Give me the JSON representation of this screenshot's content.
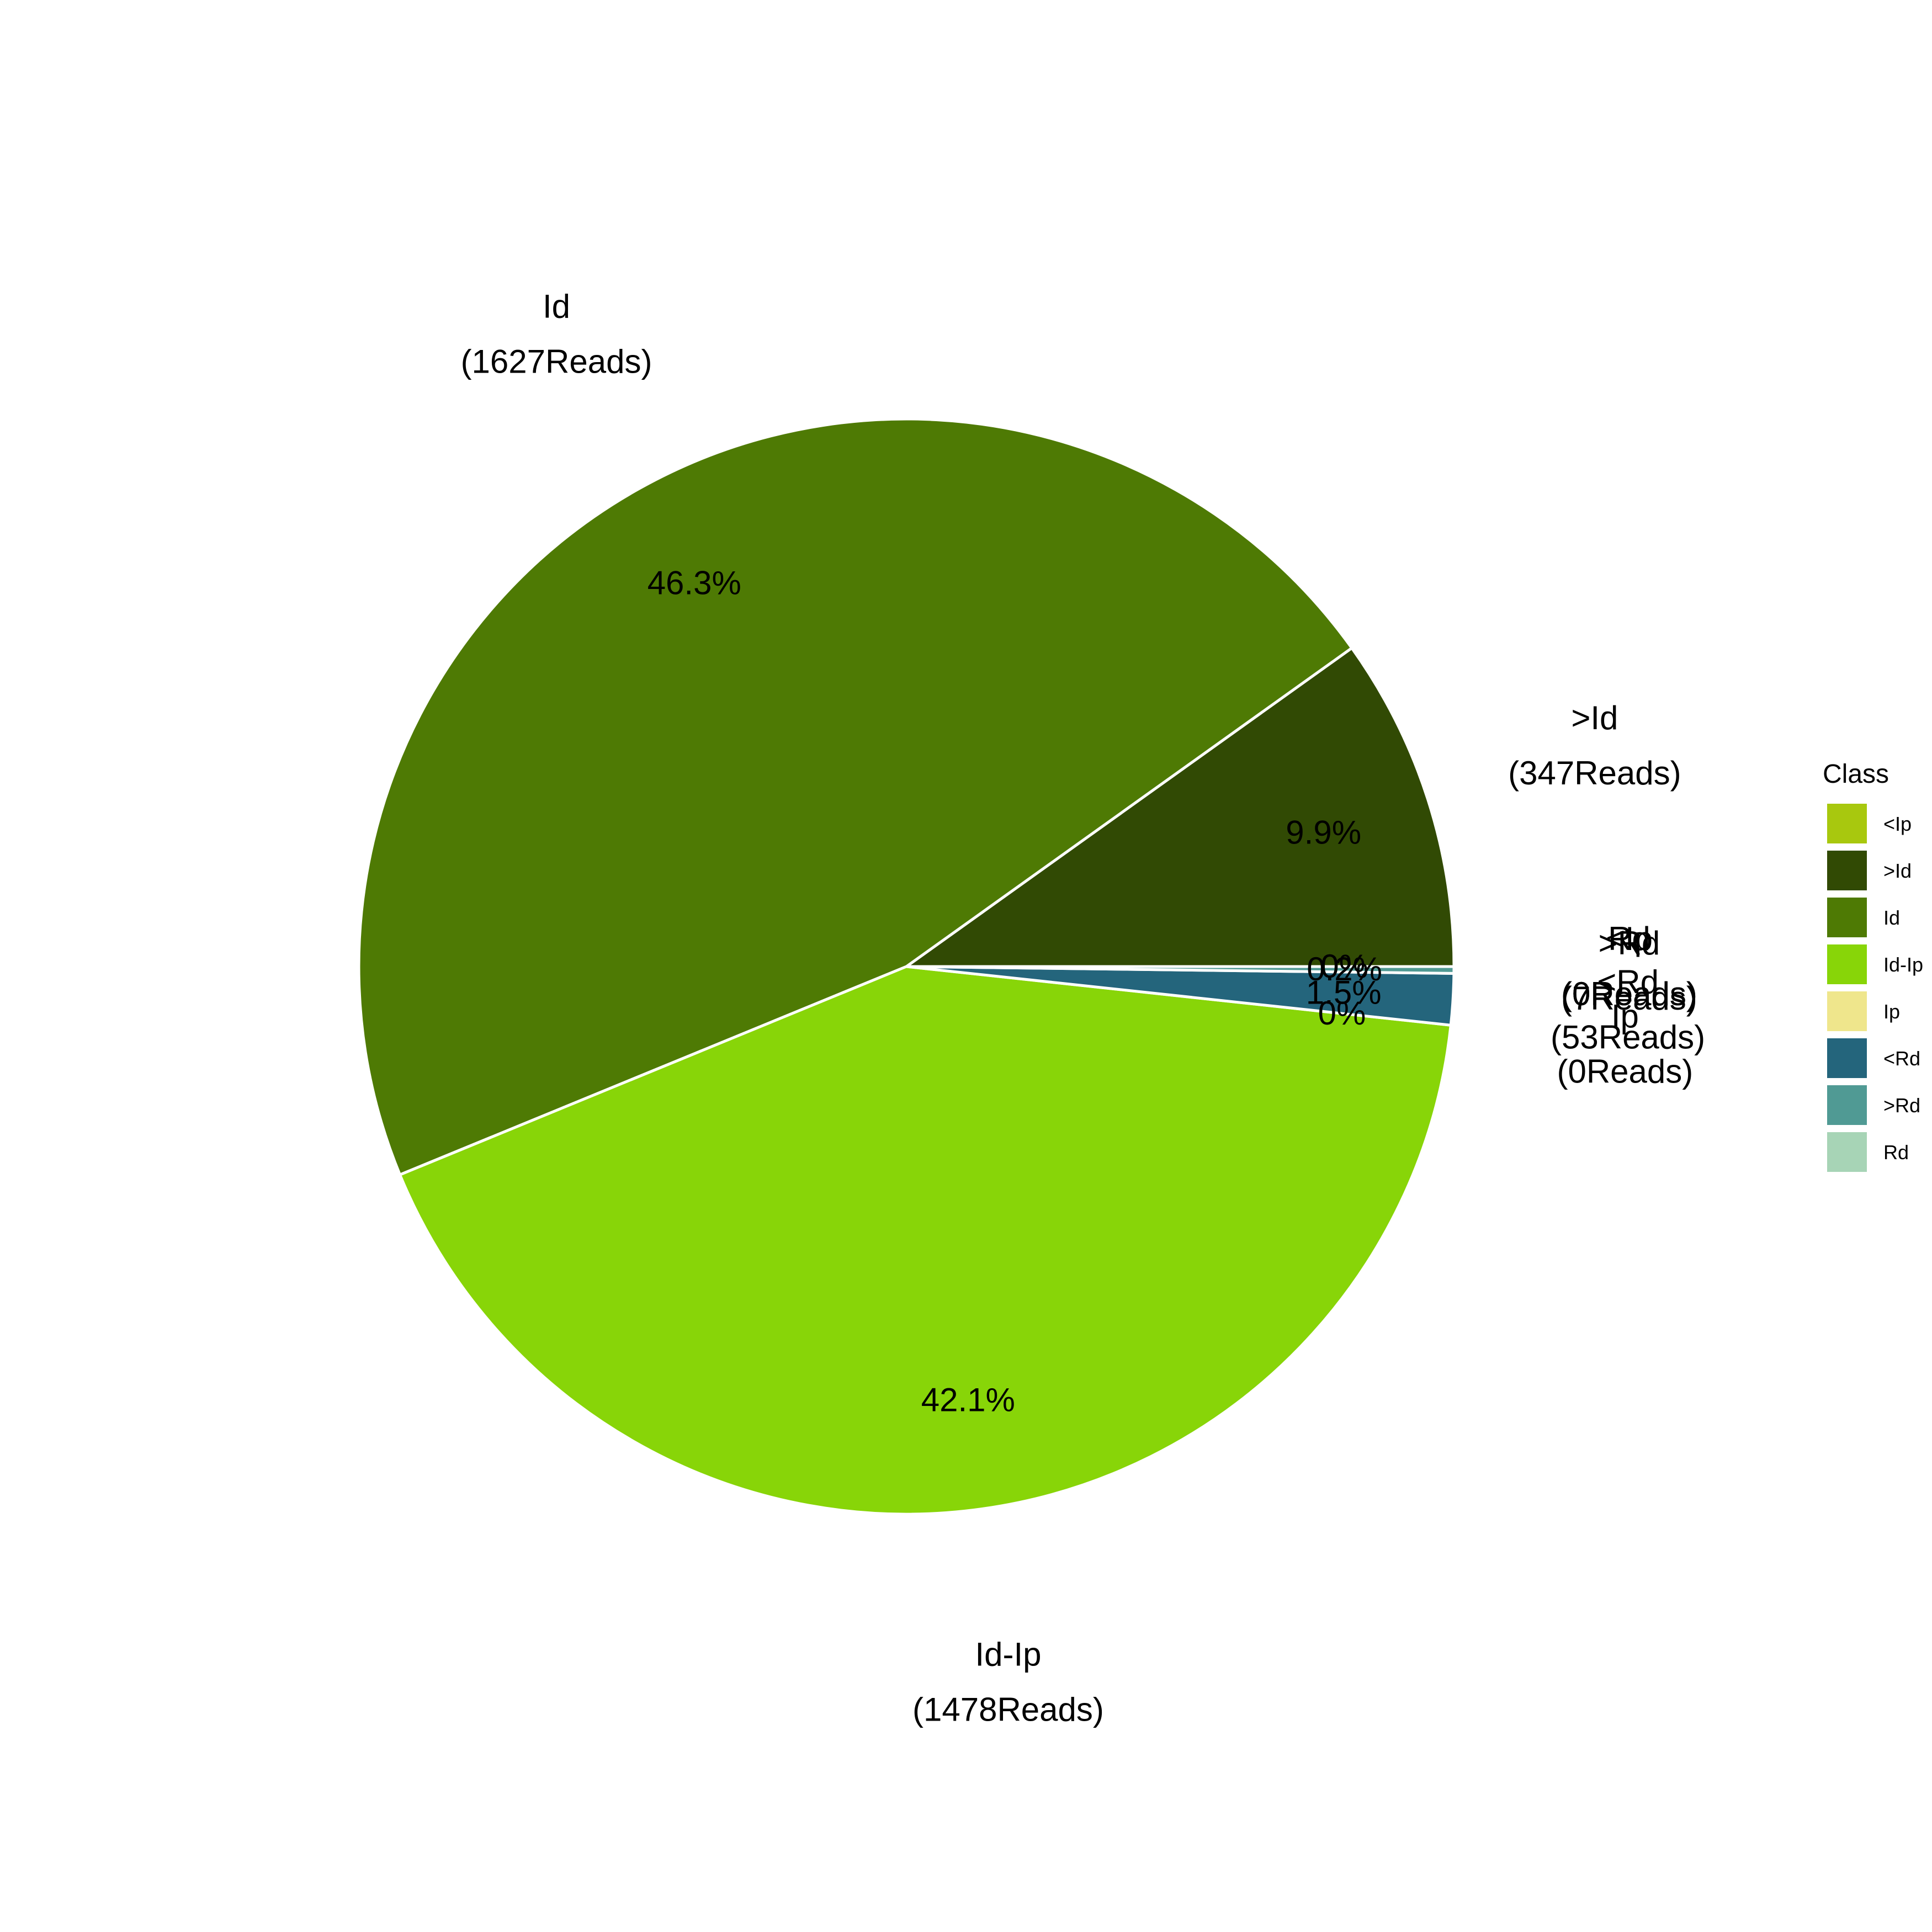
{
  "chart_data": {
    "type": "pie",
    "title": "",
    "slices": [
      {
        "name": "<Ip",
        "value": 0,
        "percent_label": "0%",
        "reads_label": "(0Reads)",
        "color": "#A8C80E"
      },
      {
        "name": ">Id",
        "value": 347,
        "percent_label": "9.9%",
        "reads_label": "(347Reads)",
        "color": "#314A04"
      },
      {
        "name": "Id",
        "value": 1627,
        "percent_label": "46.3%",
        "reads_label": "(1627Reads)",
        "color": "#4E7A04"
      },
      {
        "name": "Id-Ip",
        "value": 1478,
        "percent_label": "42.1%",
        "reads_label": "(1478Reads)",
        "color": "#88D508"
      },
      {
        "name": "Ip",
        "value": 0,
        "percent_label": "0%",
        "reads_label": "(0Reads)",
        "color": "#EFE68C"
      },
      {
        "name": "<Rd",
        "value": 53,
        "percent_label": "1.5%",
        "reads_label": "(53Reads)",
        "color": "#24657C"
      },
      {
        "name": ">Rd",
        "value": 7,
        "percent_label": "0.2%",
        "reads_label": "(7Reads)",
        "color": "#509A94"
      },
      {
        "name": "Rd",
        "value": 0,
        "percent_label": "0%",
        "reads_label": "(0Reads)",
        "color": "#A7D4B6"
      }
    ],
    "legend": {
      "title": "Class",
      "position": "right",
      "entries": [
        "<Ip",
        ">Id",
        "Id",
        "Id-Ip",
        "Ip",
        "<Rd",
        ">Rd",
        "Rd"
      ]
    },
    "slice_border_color": "#ffffff"
  }
}
